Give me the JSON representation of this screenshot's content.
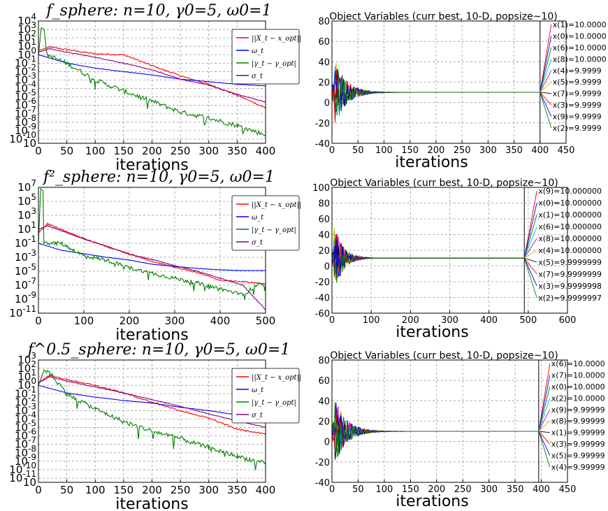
{
  "chart_data": [
    {
      "type": "line",
      "title": "f_sphere: n=10, γ0=5, ω0=1",
      "xlabel": "iterations",
      "xlim": [
        0,
        400
      ],
      "x_ticks": [
        "0",
        "50",
        "100",
        "150",
        "200",
        "250",
        "300",
        "350",
        "400"
      ],
      "yscale": "log",
      "y_ticks": [
        "10^4",
        "10^3",
        "10^2",
        "10^1",
        "10^0",
        "10^-1",
        "10^-2",
        "10^-3",
        "10^-4",
        "10^-5",
        "10^-6",
        "10^-7",
        "10^-8",
        "10^-9",
        "10^-10",
        "10"
      ],
      "grid": true,
      "legend_position": "top-right",
      "series": [
        {
          "name": "||X_t − x_opt||",
          "color": "#ff0000",
          "x": [
            0,
            20,
            50,
            100,
            150,
            200,
            250,
            300,
            350,
            400
          ],
          "y": [
            0.5,
            0.9,
            0.6,
            0.1,
            0.0,
            -1.3,
            -2.5,
            -3.5,
            -4.8,
            -6.3
          ]
        },
        {
          "name": "ω_t",
          "color": "#0000ff",
          "x": [
            0,
            50,
            100,
            150,
            200,
            250,
            300,
            350,
            400
          ],
          "y": [
            0,
            -1.0,
            -1.6,
            -2.0,
            -2.4,
            -2.9,
            -3.2,
            -3.5,
            -3.7
          ]
        },
        {
          "name": "|γ_t − γ_opt|",
          "color": "#008000",
          "x": [
            0,
            5,
            10,
            15,
            50,
            100,
            150,
            200,
            250,
            300,
            350,
            400
          ],
          "y": [
            0,
            3.2,
            3.0,
            0.0,
            -1.0,
            -3.0,
            -4.3,
            -5.5,
            -6.8,
            -7.5,
            -8.4,
            -9.5
          ]
        },
        {
          "name": "σ_t",
          "color": "#800080",
          "x": [
            0,
            20,
            50,
            100,
            150,
            200,
            250,
            300,
            350,
            400
          ],
          "y": [
            0.3,
            0.7,
            0.3,
            -0.3,
            -1.0,
            -1.8,
            -2.9,
            -3.6,
            -4.7,
            -5.6
          ]
        }
      ]
    },
    {
      "type": "line",
      "title": "Object Variables (curr best, 10-D, popsize~10)",
      "xlabel": "iterations",
      "xlim": [
        0,
        450
      ],
      "ylim": [
        -40,
        80
      ],
      "x_ticks": [
        "0",
        "50",
        "100",
        "150",
        "200",
        "250",
        "300",
        "350",
        "400",
        "450"
      ],
      "y_ticks": [
        "80",
        "60",
        "40",
        "20",
        "0",
        "-20",
        "-40"
      ],
      "grid": true,
      "annotations": [
        "x(1)=10.0000",
        "x(0)=10.0000",
        "x(6)=10.0000",
        "x(8)=10.0000",
        "x(4)=9.9999",
        "x(5)=9.9999",
        "x(7)=9.9999",
        "x(3)=9.9999",
        "x(9)=9.9999",
        "x(2)=9.9999"
      ]
    },
    {
      "type": "line",
      "title": "f²_sphere: n=10, γ0=5, ω0=1",
      "xlabel": "iterations",
      "xlim": [
        0,
        500
      ],
      "x_ticks": [
        "0",
        "100",
        "200",
        "300",
        "400",
        "500"
      ],
      "yscale": "log",
      "y_ticks": [
        "10^7",
        "10^5",
        "10^3",
        "10^1",
        "10^-1",
        "10^-3",
        "10^-5",
        "10^-7",
        "10^-9",
        "10^-11"
      ],
      "grid": true,
      "legend_position": "top-right",
      "series": [
        {
          "name": "||X_t − x_opt||",
          "color": "#ff0000",
          "x": [
            0,
            20,
            50,
            100,
            150,
            200,
            250,
            300,
            350,
            400,
            450,
            500
          ],
          "y": [
            0.5,
            1.8,
            1.0,
            -0.3,
            -1.5,
            -2.5,
            -3.6,
            -4.4,
            -5.2,
            -6.3,
            -6.5,
            -6.8
          ]
        },
        {
          "name": "ω_t",
          "color": "#0000ff",
          "x": [
            0,
            50,
            100,
            150,
            200,
            250,
            300,
            350,
            400,
            450,
            500
          ],
          "y": [
            -1,
            -2.0,
            -2.5,
            -3.0,
            -3.4,
            -4.0,
            -4.3,
            -4.6,
            -4.8,
            -4.9,
            -4.9
          ]
        },
        {
          "name": "|γ_t − γ_opt|",
          "color": "#008000",
          "x": [
            0,
            5,
            10,
            12,
            50,
            100,
            150,
            200,
            250,
            300,
            350,
            400,
            450,
            480,
            500
          ],
          "y": [
            -1,
            6.8,
            6.5,
            -1.0,
            -1.0,
            -2.8,
            -3.4,
            -4.5,
            -5.3,
            -6.0,
            -6.7,
            -7.5,
            -8.4,
            -7.0,
            -6.9
          ]
        },
        {
          "name": "σ_t",
          "color": "#800080",
          "x": [
            0,
            20,
            50,
            100,
            150,
            200,
            250,
            300,
            350,
            400,
            450,
            500
          ],
          "y": [
            1.0,
            1.5,
            0.8,
            -0.4,
            -1.4,
            -2.6,
            -3.3,
            -4.2,
            -5.0,
            -6.0,
            -7.0,
            -10.5
          ]
        }
      ]
    },
    {
      "type": "line",
      "title": "Object Variables (curr best, 10-D, popsize~10)",
      "xlabel": "iterations",
      "xlim": [
        0,
        600
      ],
      "ylim": [
        -60,
        100
      ],
      "x_ticks": [
        "0",
        "100",
        "200",
        "300",
        "400",
        "500",
        "600"
      ],
      "y_ticks": [
        "100",
        "80",
        "60",
        "40",
        "20",
        "0",
        "-20",
        "-40",
        "-60"
      ],
      "grid": true,
      "annotations": [
        "x(9)=10.000000",
        "x(0)=10.000000",
        "x(1)=10.000000",
        "x(6)=10.000000",
        "x(8)=10.000000",
        "x(4)=10.000000",
        "x(5)=9.9999999",
        "x(7)=9.9999999",
        "x(3)=9.9999998",
        "x(2)=9.9999997"
      ]
    },
    {
      "type": "line",
      "title": "f^0.5_sphere: n=10, γ0=5, ω0=1",
      "xlabel": "iterations",
      "xlim": [
        0,
        400
      ],
      "x_ticks": [
        "0",
        "50",
        "100",
        "150",
        "200",
        "250",
        "300",
        "350",
        "400"
      ],
      "yscale": "log",
      "y_ticks": [
        "10^3",
        "10^2",
        "10^1",
        "10^0",
        "10^-1",
        "10^-2",
        "10^-3",
        "10^-4",
        "10^-5",
        "10^-6",
        "10^-7",
        "10^-8",
        "10^-9",
        "10^-10",
        "10^-11",
        "10"
      ],
      "grid": true,
      "legend_position": "top-right",
      "series": [
        {
          "name": "||X_t − x_opt||",
          "color": "#ff0000",
          "x": [
            0,
            20,
            50,
            100,
            150,
            200,
            250,
            300,
            350,
            400
          ],
          "y": [
            0.3,
            1.2,
            0.7,
            0.0,
            -0.9,
            -2.0,
            -3.0,
            -3.9,
            -5.2,
            -5.8
          ]
        },
        {
          "name": "ω_t",
          "color": "#0000ff",
          "x": [
            0,
            50,
            100,
            150,
            200,
            250,
            300,
            350,
            400
          ],
          "y": [
            0,
            -0.9,
            -1.4,
            -1.8,
            -2.1,
            -2.6,
            -3.0,
            -3.5,
            -3.8
          ]
        },
        {
          "name": "|γ_t − γ_opt|",
          "color": "#008000",
          "x": [
            0,
            10,
            20,
            50,
            100,
            150,
            200,
            250,
            300,
            350,
            400
          ],
          "y": [
            0,
            1.8,
            1.5,
            -1.0,
            -2.8,
            -4.3,
            -5.4,
            -6.3,
            -7.4,
            -8.4,
            -9.3
          ]
        },
        {
          "name": "σ_t",
          "color": "#800080",
          "x": [
            0,
            20,
            50,
            100,
            150,
            200,
            250,
            300,
            350,
            400
          ],
          "y": [
            0.3,
            1.0,
            0.5,
            -0.2,
            -0.9,
            -1.7,
            -2.5,
            -3.4,
            -4.2,
            -5.0
          ]
        }
      ]
    },
    {
      "type": "line",
      "title": "Object Variables (curr best, 10-D, popsize~10)",
      "xlabel": "iterations",
      "xlim": [
        0,
        450
      ],
      "ylim": [
        -40,
        80
      ],
      "x_ticks": [
        "0",
        "50",
        "100",
        "150",
        "200",
        "250",
        "300",
        "350",
        "400",
        "450"
      ],
      "y_ticks": [
        "80",
        "60",
        "40",
        "20",
        "0",
        "-20",
        "-40"
      ],
      "grid": true,
      "annotations": [
        "x(6)=10.0000",
        "x(7)=10.0000",
        "x(0)=10.0000",
        "x(2)=10.0000",
        "x(9)=9.99999",
        "x(8)=9.99999",
        "x(1)=9.99999",
        "x(3)=9.99999",
        "x(5)=9.99999",
        "x(4)=9.99999"
      ]
    }
  ]
}
